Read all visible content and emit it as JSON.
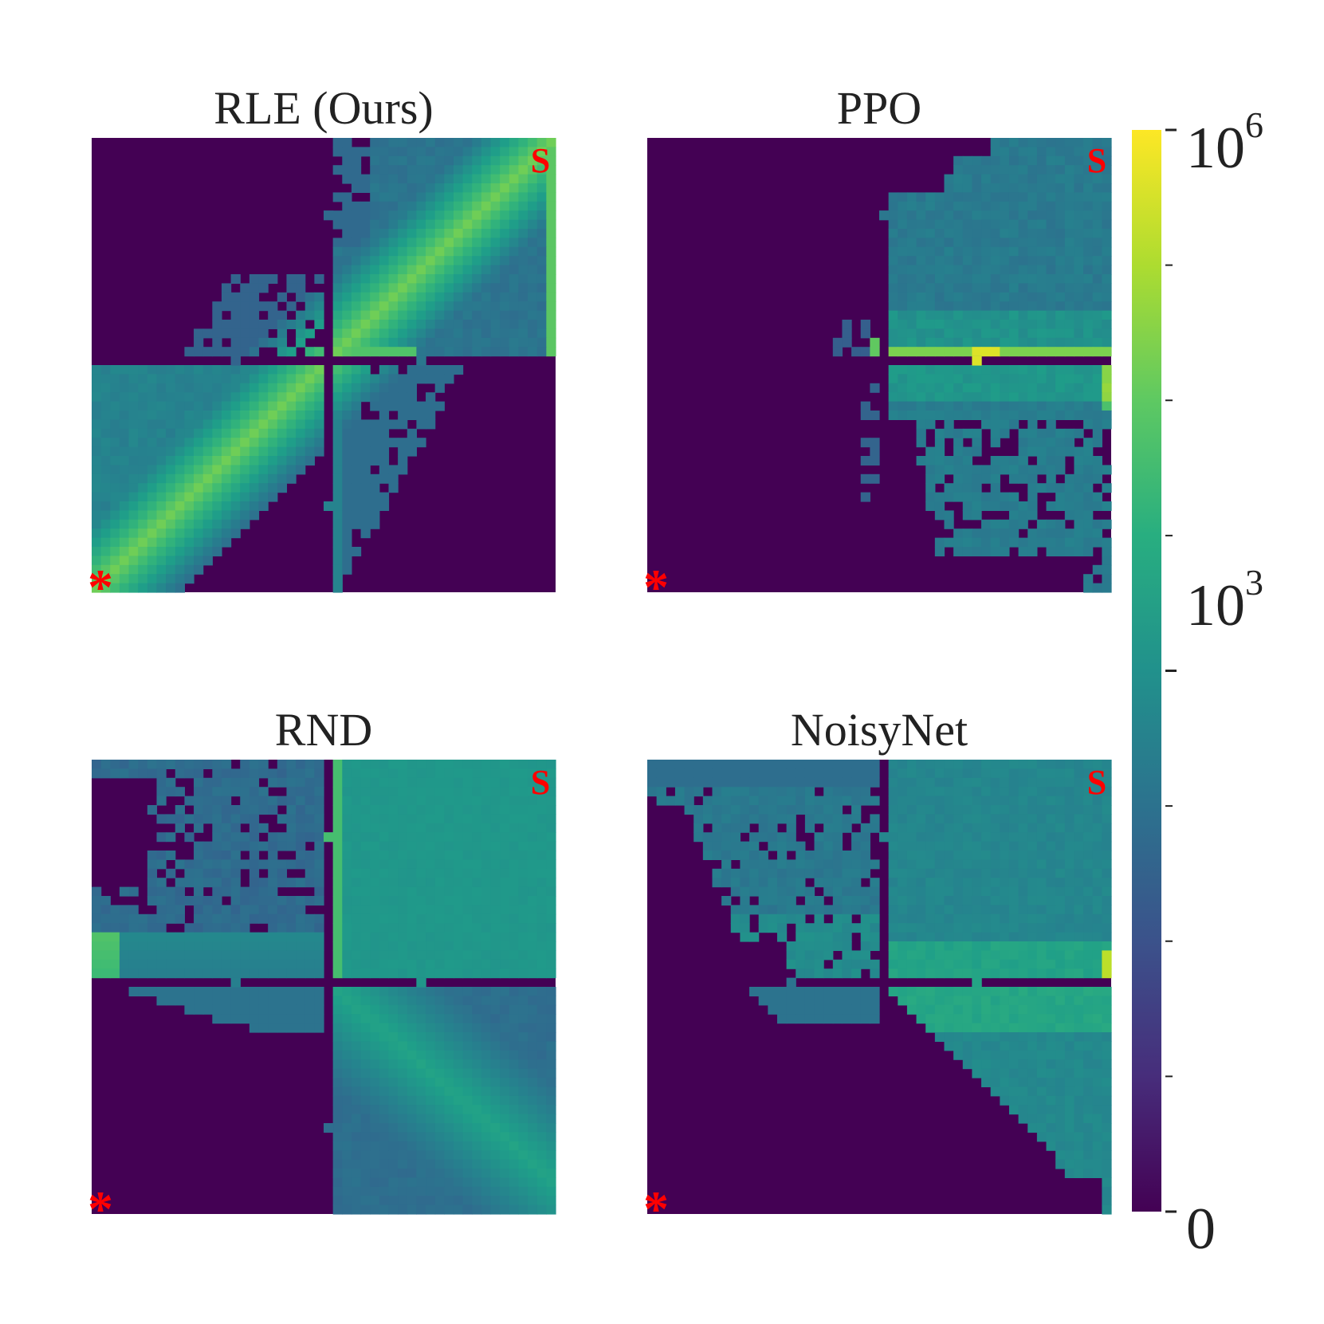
{
  "chart_data": {
    "type": "heatmap",
    "colormap": "viridis",
    "scale": "symlog",
    "grid_size": 50,
    "walls": "four rooms connected by small doorways",
    "markers": {
      "start": {
        "label": "S",
        "position": "top-right",
        "color": "#ff0000"
      },
      "goal": {
        "label": "*",
        "position": "bottom-left",
        "color": "#ff0000"
      }
    },
    "panels": [
      {
        "title": "RLE (Ours)",
        "pattern": "rle"
      },
      {
        "title": "PPO",
        "pattern": "ppo"
      },
      {
        "title": "RND",
        "pattern": "rnd"
      },
      {
        "title": "NoisyNet",
        "pattern": "noisy"
      }
    ],
    "colorbar": {
      "range": [
        0,
        1000000
      ],
      "ticks": [
        {
          "value": 0,
          "base": "0",
          "exp": ""
        },
        {
          "value": 1000,
          "base": "10",
          "exp": "3"
        },
        {
          "value": 1000000,
          "base": "10",
          "exp": "6"
        }
      ],
      "minor_ticks": 9
    }
  }
}
